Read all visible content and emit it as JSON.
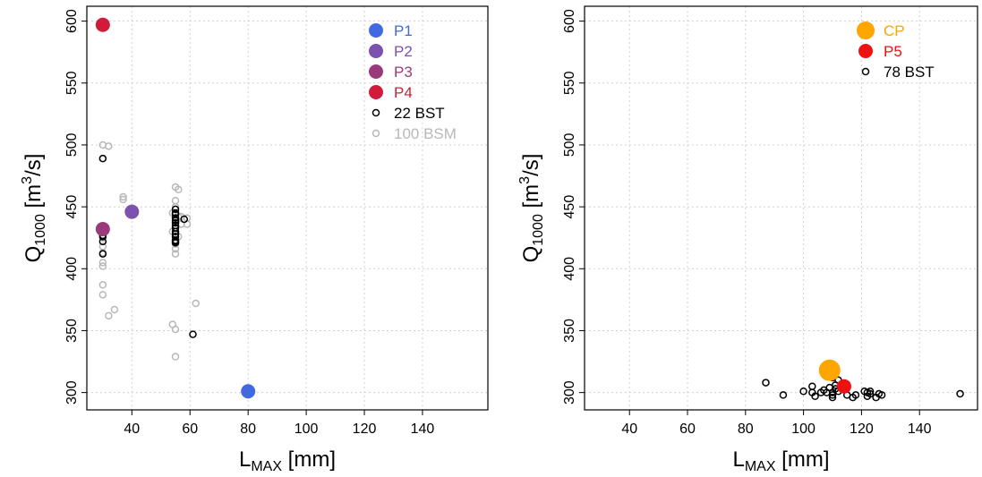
{
  "chart_data": [
    {
      "type": "scatter",
      "xlabel": {
        "main": "L",
        "sub": "MAX",
        "rest": " [mm]"
      },
      "ylabel": {
        "main": "Q",
        "sub": "1000",
        "rest": " [m",
        "sup": "3",
        "end": "/s]"
      },
      "xlim": [
        24.5,
        162.5
      ],
      "ylim": [
        286,
        612
      ],
      "xticks": [
        40,
        60,
        80,
        100,
        120,
        140
      ],
      "yticks": [
        300,
        350,
        400,
        450,
        500,
        550,
        600
      ],
      "grid": true,
      "legend": "top right",
      "series": [
        {
          "name": "P1",
          "color": "#4169e1",
          "filled": true,
          "size": 8,
          "x": [
            80
          ],
          "values": [
            301
          ]
        },
        {
          "name": "P2",
          "color": "#7b52ae",
          "filled": true,
          "size": 8,
          "x": [
            40
          ],
          "values": [
            446
          ]
        },
        {
          "name": "P3",
          "color": "#9b3a7a",
          "filled": true,
          "size": 8,
          "x": [
            30
          ],
          "values": [
            432
          ]
        },
        {
          "name": "P4",
          "color": "#d01c3a",
          "filled": true,
          "size": 8,
          "x": [
            30
          ],
          "values": [
            597
          ]
        },
        {
          "name": "22 BST",
          "color": "#000000",
          "filled": false,
          "size": 3.5,
          "x": [
            30,
            30,
            30,
            30,
            30,
            55,
            55,
            55,
            55,
            55,
            55,
            55,
            55,
            55,
            55,
            58,
            61,
            30,
            55,
            55,
            55,
            55
          ],
          "values": [
            489,
            430,
            427,
            422,
            412,
            448,
            445,
            441,
            437,
            433,
            430,
            426,
            422,
            421,
            444,
            440,
            347,
            426,
            435,
            428,
            423,
            439
          ]
        },
        {
          "name": "100 BSM",
          "color": "#b8b8b8",
          "filled": false,
          "size": 3.5,
          "x": [
            30,
            32,
            30,
            37,
            37,
            30,
            30,
            30,
            30,
            30,
            30,
            30,
            34,
            32,
            55,
            56,
            55,
            55,
            54,
            56,
            55,
            57,
            59,
            54,
            56,
            55,
            55,
            55,
            62,
            54,
            55,
            55,
            57,
            59
          ],
          "values": [
            500,
            499,
            489,
            458,
            456,
            425,
            418,
            413,
            405,
            402,
            387,
            379,
            367,
            362,
            466,
            464,
            455,
            450,
            445,
            442,
            438,
            436,
            436,
            430,
            426,
            420,
            416,
            412,
            372,
            355,
            351,
            329,
            442,
            441
          ]
        }
      ]
    },
    {
      "type": "scatter",
      "xlabel": {
        "main": "L",
        "sub": "MAX",
        "rest": " [mm]"
      },
      "ylabel": {
        "main": "Q",
        "sub": "1000",
        "rest": " [m",
        "sup": "3",
        "end": "/s]"
      },
      "xlim": [
        24.5,
        160
      ],
      "ylim": [
        286,
        612
      ],
      "xticks": [
        40,
        60,
        80,
        100,
        120,
        140
      ],
      "yticks": [
        300,
        350,
        400,
        450,
        500,
        550,
        600
      ],
      "grid": true,
      "legend": "top right",
      "series": [
        {
          "name": "CP",
          "color": "#ffa500",
          "filled": true,
          "size": 12,
          "x": [
            109
          ],
          "values": [
            318
          ]
        },
        {
          "name": "P5",
          "color": "#ee1111",
          "filled": true,
          "size": 8,
          "x": [
            114
          ],
          "values": [
            305
          ]
        },
        {
          "name": "78 BST",
          "color": "#000000",
          "filled": false,
          "size": 3.5,
          "x": [
            87,
            93,
            100,
            103,
            103,
            104,
            106,
            107,
            108,
            108,
            108,
            109,
            109,
            110,
            110,
            110,
            110,
            110,
            110,
            111,
            111,
            111,
            112,
            115,
            117,
            118,
            121,
            122,
            122,
            123,
            123,
            125,
            126,
            127,
            154,
            109,
            111,
            112
          ],
          "values": [
            308,
            298,
            301,
            305,
            300,
            297,
            300,
            302,
            300,
            316,
            320,
            314,
            319,
            321,
            317,
            312,
            300,
            298,
            296,
            320,
            316,
            303,
            301,
            298,
            296,
            298,
            301,
            300,
            297,
            299,
            301,
            296,
            299,
            298,
            299,
            304,
            306,
            310
          ]
        }
      ]
    }
  ]
}
